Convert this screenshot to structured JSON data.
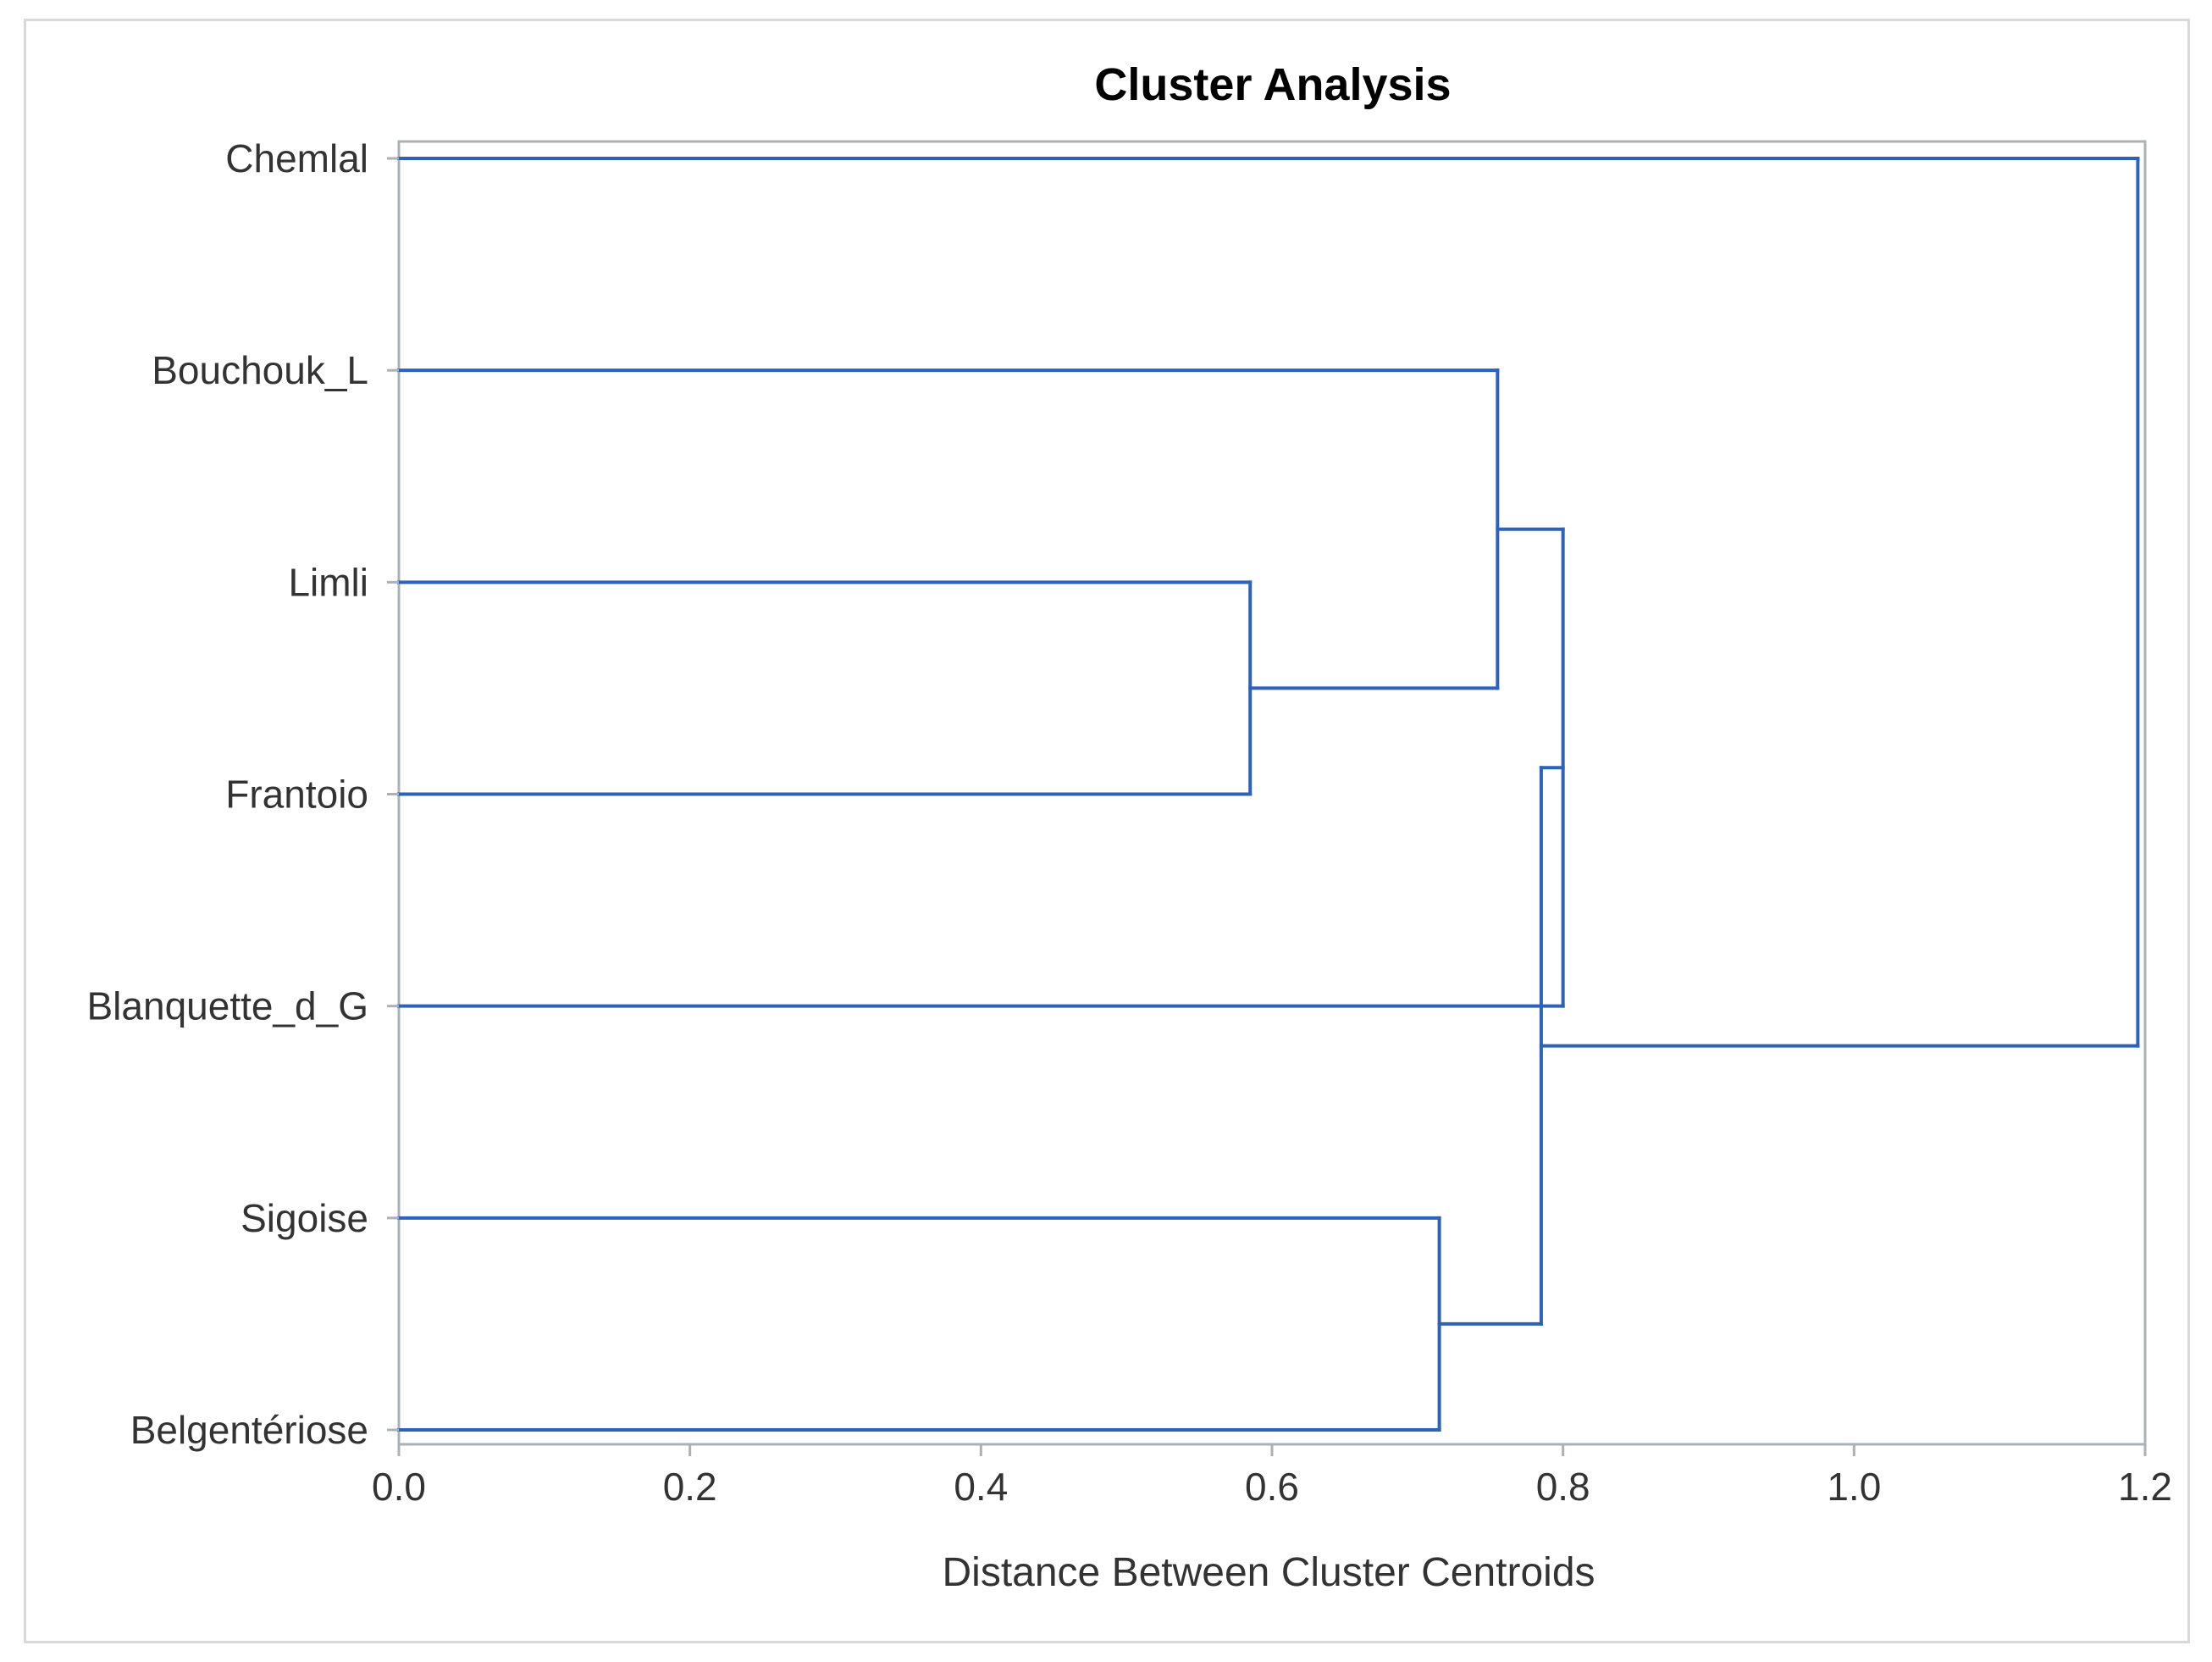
{
  "chart_data": {
    "type": "dendrogram",
    "title": "Cluster Analysis",
    "xlabel": "Distance Between Cluster Centroids",
    "ylabel": "",
    "xlim": [
      0,
      1.2
    ],
    "x_ticks": [
      "0.0",
      "0.2",
      "0.4",
      "0.6",
      "0.8",
      "1.0",
      "1.2"
    ],
    "x_tick_values": [
      0,
      0.2,
      0.4,
      0.6,
      0.8,
      1.0,
      1.2
    ],
    "leaves": [
      "Chemlal",
      "Bouchouk_L",
      "Limli",
      "Frantoio",
      "Blanquette_d_G",
      "Sigoise",
      "Belgentériose"
    ],
    "merges": [
      {
        "left": "leaf:Limli",
        "right": "leaf:Frantoio",
        "distance": 0.585
      },
      {
        "left": "leaf:Sigoise",
        "right": "leaf:Belgentériose",
        "distance": 0.715
      },
      {
        "left": "leaf:Bouchouk_L",
        "right": "node:0",
        "distance": 0.755
      },
      {
        "left": "node:2",
        "right": "leaf:Blanquette_d_G",
        "distance": 0.8
      },
      {
        "left": "node:3",
        "right": "node:1",
        "distance": 0.785
      },
      {
        "left": "leaf:Chemlal",
        "right": "node:4",
        "distance": 1.195
      }
    ],
    "grid": false,
    "legend": "none",
    "colors": {
      "line": "#2e62b8",
      "frame": "#aab1b7",
      "text": "#333333"
    }
  }
}
